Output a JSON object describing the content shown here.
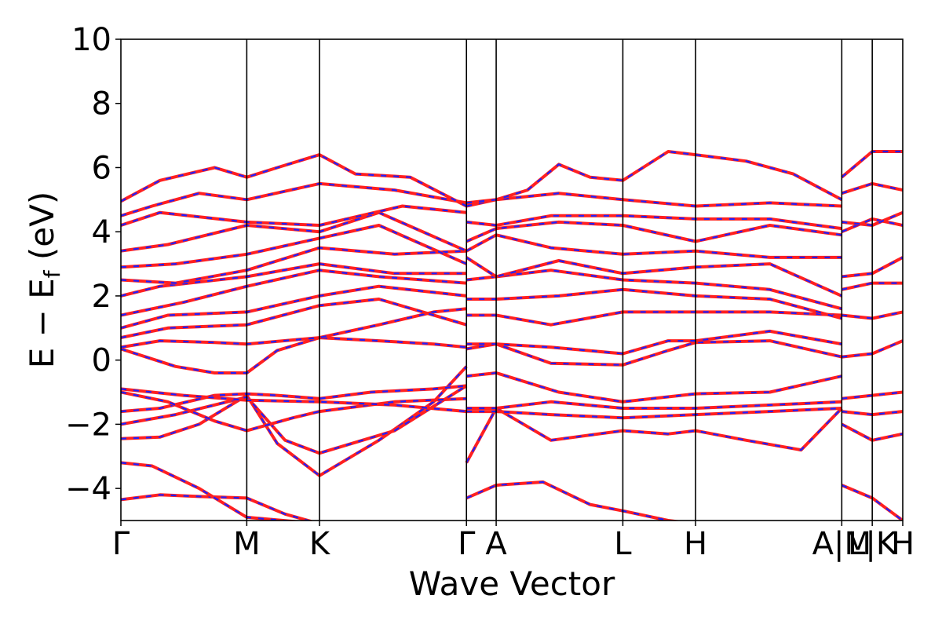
{
  "chart_data": {
    "type": "line",
    "title": "",
    "xlabel": "Wave Vector",
    "ylabel": "E − E_f (eV)",
    "ylabel_parts": {
      "prefix": "E − E",
      "subscript": "f",
      "suffix": " (eV)"
    },
    "ylim": [
      -5,
      10
    ],
    "yticks": [
      -4,
      -2,
      0,
      2,
      4,
      6,
      8,
      10
    ],
    "ytick_labels": [
      "−4",
      "−2",
      "0",
      "2",
      "4",
      "6",
      "8",
      "10"
    ],
    "grid": false,
    "legend": "none",
    "kpath_labels": [
      "Γ",
      "M",
      "K",
      "Γ",
      "A",
      "L",
      "H",
      "A",
      "M",
      "L",
      "K",
      "H"
    ],
    "kpath_positions": [
      0,
      0.161,
      0.254,
      0.442,
      0.48,
      0.642,
      0.735,
      0.922,
      0.961,
      1.0
    ],
    "kpath_tick_labels": [
      "Γ",
      "M",
      "K",
      "Γ",
      "A",
      "L",
      "H",
      "A|M",
      "L|K",
      "H"
    ],
    "series_styles": [
      {
        "color": "#ff2020",
        "style": "solid"
      },
      {
        "color": "#2020ff",
        "style": "dashed"
      }
    ],
    "bands": [
      [
        [
          0,
          -4.35
        ],
        [
          0.05,
          -4.2
        ],
        [
          0.1,
          -4.25
        ],
        [
          0.161,
          -4.3
        ],
        [
          0.21,
          -4.8
        ],
        [
          0.254,
          -5.1
        ]
      ],
      [
        [
          0,
          -3.2
        ],
        [
          0.04,
          -3.3
        ],
        [
          0.1,
          -4.0
        ],
        [
          0.161,
          -4.9
        ],
        [
          0.254,
          -5.1
        ]
      ],
      [
        [
          0,
          -2.45
        ],
        [
          0.05,
          -2.4
        ],
        [
          0.1,
          -2.0
        ],
        [
          0.161,
          -1.1
        ],
        [
          0.2,
          -2.6
        ],
        [
          0.254,
          -3.6
        ],
        [
          0.33,
          -2.5
        ],
        [
          0.4,
          -1.3
        ],
        [
          0.442,
          -0.2
        ]
      ],
      [
        [
          0,
          -2.0
        ],
        [
          0.07,
          -1.7
        ],
        [
          0.161,
          -1.15
        ],
        [
          0.21,
          -2.5
        ],
        [
          0.254,
          -2.9
        ],
        [
          0.35,
          -2.2
        ],
        [
          0.442,
          -0.8
        ]
      ],
      [
        [
          0,
          -1.6
        ],
        [
          0.05,
          -1.5
        ],
        [
          0.12,
          -1.1
        ],
        [
          0.161,
          -1.05
        ],
        [
          0.2,
          -1.1
        ],
        [
          0.254,
          -1.2
        ],
        [
          0.32,
          -1.0
        ],
        [
          0.4,
          -0.9
        ],
        [
          0.442,
          -0.8
        ]
      ],
      [
        [
          0,
          -1.0
        ],
        [
          0.06,
          -1.3
        ],
        [
          0.12,
          -1.9
        ],
        [
          0.161,
          -2.2
        ],
        [
          0.22,
          -1.8
        ],
        [
          0.254,
          -1.6
        ],
        [
          0.35,
          -1.3
        ],
        [
          0.442,
          -1.2
        ]
      ],
      [
        [
          0,
          -0.9
        ],
        [
          0.08,
          -1.1
        ],
        [
          0.161,
          -1.25
        ],
        [
          0.254,
          -1.3
        ],
        [
          0.35,
          -1.4
        ],
        [
          0.442,
          -1.6
        ]
      ],
      [
        [
          0,
          0.35
        ],
        [
          0.07,
          -0.2
        ],
        [
          0.12,
          -0.4
        ],
        [
          0.161,
          -0.4
        ],
        [
          0.2,
          0.3
        ],
        [
          0.254,
          0.7
        ],
        [
          0.33,
          0.6
        ],
        [
          0.4,
          0.5
        ],
        [
          0.442,
          0.4
        ]
      ],
      [
        [
          0,
          0.4
        ],
        [
          0.05,
          0.6
        ],
        [
          0.12,
          0.55
        ],
        [
          0.161,
          0.5
        ],
        [
          0.254,
          0.7
        ],
        [
          0.33,
          1.1
        ],
        [
          0.4,
          1.5
        ],
        [
          0.442,
          1.6
        ]
      ],
      [
        [
          0,
          0.7
        ],
        [
          0.06,
          1.0
        ],
        [
          0.161,
          1.1
        ],
        [
          0.254,
          1.7
        ],
        [
          0.33,
          1.9
        ],
        [
          0.442,
          1.1
        ]
      ],
      [
        [
          0,
          1.0
        ],
        [
          0.06,
          1.4
        ],
        [
          0.161,
          1.5
        ],
        [
          0.254,
          2.0
        ],
        [
          0.33,
          2.3
        ],
        [
          0.442,
          2.0
        ]
      ],
      [
        [
          0,
          1.4
        ],
        [
          0.08,
          1.8
        ],
        [
          0.161,
          2.3
        ],
        [
          0.254,
          2.8
        ],
        [
          0.33,
          2.6
        ],
        [
          0.442,
          2.4
        ]
      ],
      [
        [
          0,
          2.0
        ],
        [
          0.05,
          2.3
        ],
        [
          0.161,
          2.6
        ],
        [
          0.254,
          3.0
        ],
        [
          0.35,
          2.7
        ],
        [
          0.442,
          2.7
        ]
      ],
      [
        [
          0,
          2.5
        ],
        [
          0.07,
          2.4
        ],
        [
          0.161,
          2.8
        ],
        [
          0.254,
          3.5
        ],
        [
          0.35,
          3.3
        ],
        [
          0.442,
          3.4
        ]
      ],
      [
        [
          0,
          2.9
        ],
        [
          0.07,
          3.0
        ],
        [
          0.161,
          3.3
        ],
        [
          0.254,
          3.8
        ],
        [
          0.33,
          4.2
        ],
        [
          0.442,
          3.0
        ]
      ],
      [
        [
          0,
          3.4
        ],
        [
          0.06,
          3.6
        ],
        [
          0.161,
          4.2
        ],
        [
          0.254,
          4.0
        ],
        [
          0.33,
          4.6
        ],
        [
          0.442,
          3.4
        ]
      ],
      [
        [
          0,
          4.2
        ],
        [
          0.05,
          4.6
        ],
        [
          0.161,
          4.3
        ],
        [
          0.254,
          4.2
        ],
        [
          0.36,
          4.8
        ],
        [
          0.442,
          4.6
        ]
      ],
      [
        [
          0,
          4.5
        ],
        [
          0.04,
          4.8
        ],
        [
          0.1,
          5.2
        ],
        [
          0.161,
          5.0
        ],
        [
          0.254,
          5.5
        ],
        [
          0.35,
          5.3
        ],
        [
          0.442,
          4.9
        ]
      ],
      [
        [
          0,
          4.95
        ],
        [
          0.05,
          5.6
        ],
        [
          0.12,
          6.0
        ],
        [
          0.161,
          5.7
        ],
        [
          0.2,
          6.0
        ],
        [
          0.254,
          6.4
        ],
        [
          0.3,
          5.8
        ],
        [
          0.37,
          5.7
        ],
        [
          0.442,
          4.8
        ]
      ],
      [
        [
          0.442,
          -4.3
        ],
        [
          0.48,
          -3.9
        ],
        [
          0.54,
          -3.8
        ],
        [
          0.6,
          -4.5
        ],
        [
          0.642,
          -4.7
        ],
        [
          0.7,
          -5.0
        ],
        [
          0.735,
          -5.1
        ]
      ],
      [
        [
          0.442,
          -3.2
        ],
        [
          0.48,
          -1.5
        ],
        [
          0.55,
          -2.5
        ],
        [
          0.642,
          -2.2
        ],
        [
          0.7,
          -2.3
        ],
        [
          0.735,
          -2.2
        ],
        [
          0.8,
          -2.5
        ],
        [
          0.87,
          -2.8
        ],
        [
          0.922,
          -1.5
        ]
      ],
      [
        [
          0.442,
          -1.6
        ],
        [
          0.48,
          -1.6
        ],
        [
          0.55,
          -1.7
        ],
        [
          0.642,
          -1.8
        ],
        [
          0.735,
          -1.7
        ],
        [
          0.83,
          -1.6
        ],
        [
          0.922,
          -1.5
        ]
      ],
      [
        [
          0.442,
          -1.5
        ],
        [
          0.48,
          -1.5
        ],
        [
          0.55,
          -1.3
        ],
        [
          0.642,
          -1.5
        ],
        [
          0.735,
          -1.5
        ],
        [
          0.83,
          -1.4
        ],
        [
          0.922,
          -1.3
        ]
      ],
      [
        [
          0.442,
          -0.5
        ],
        [
          0.48,
          -0.4
        ],
        [
          0.56,
          -1.0
        ],
        [
          0.642,
          -1.3
        ],
        [
          0.735,
          -1.05
        ],
        [
          0.83,
          -1.0
        ],
        [
          0.922,
          -0.5
        ]
      ],
      [
        [
          0.442,
          0.35
        ],
        [
          0.48,
          0.5
        ],
        [
          0.55,
          -0.1
        ],
        [
          0.642,
          -0.15
        ],
        [
          0.7,
          0.3
        ],
        [
          0.735,
          0.55
        ],
        [
          0.83,
          0.6
        ],
        [
          0.922,
          0.1
        ]
      ],
      [
        [
          0.442,
          0.5
        ],
        [
          0.48,
          0.5
        ],
        [
          0.55,
          0.4
        ],
        [
          0.642,
          0.2
        ],
        [
          0.7,
          0.6
        ],
        [
          0.735,
          0.6
        ],
        [
          0.83,
          0.9
        ],
        [
          0.922,
          0.5
        ]
      ],
      [
        [
          0.442,
          1.4
        ],
        [
          0.48,
          1.4
        ],
        [
          0.55,
          1.1
        ],
        [
          0.642,
          1.5
        ],
        [
          0.735,
          1.5
        ],
        [
          0.83,
          1.5
        ],
        [
          0.922,
          1.4
        ]
      ],
      [
        [
          0.442,
          1.9
        ],
        [
          0.48,
          1.9
        ],
        [
          0.56,
          2.0
        ],
        [
          0.642,
          2.2
        ],
        [
          0.735,
          2.0
        ],
        [
          0.83,
          1.9
        ],
        [
          0.922,
          1.3
        ]
      ],
      [
        [
          0.442,
          2.5
        ],
        [
          0.48,
          2.6
        ],
        [
          0.55,
          2.8
        ],
        [
          0.642,
          2.5
        ],
        [
          0.735,
          2.4
        ],
        [
          0.83,
          2.2
        ],
        [
          0.922,
          1.6
        ]
      ],
      [
        [
          0.442,
          3.2
        ],
        [
          0.48,
          2.6
        ],
        [
          0.56,
          3.1
        ],
        [
          0.642,
          2.7
        ],
        [
          0.735,
          2.9
        ],
        [
          0.83,
          3.0
        ],
        [
          0.922,
          2.0
        ]
      ],
      [
        [
          0.442,
          3.4
        ],
        [
          0.48,
          3.9
        ],
        [
          0.55,
          3.5
        ],
        [
          0.642,
          3.3
        ],
        [
          0.735,
          3.4
        ],
        [
          0.83,
          3.2
        ],
        [
          0.922,
          3.2
        ]
      ],
      [
        [
          0.442,
          3.7
        ],
        [
          0.48,
          4.1
        ],
        [
          0.56,
          4.3
        ],
        [
          0.642,
          4.2
        ],
        [
          0.735,
          3.7
        ],
        [
          0.83,
          4.2
        ],
        [
          0.922,
          3.9
        ]
      ],
      [
        [
          0.442,
          4.3
        ],
        [
          0.48,
          4.2
        ],
        [
          0.55,
          4.5
        ],
        [
          0.642,
          4.5
        ],
        [
          0.735,
          4.4
        ],
        [
          0.83,
          4.4
        ],
        [
          0.922,
          4.1
        ]
      ],
      [
        [
          0.442,
          4.8
        ],
        [
          0.48,
          5.0
        ],
        [
          0.56,
          5.2
        ],
        [
          0.642,
          5.0
        ],
        [
          0.735,
          4.8
        ],
        [
          0.83,
          4.9
        ],
        [
          0.922,
          4.8
        ]
      ],
      [
        [
          0.442,
          4.9
        ],
        [
          0.48,
          5.0
        ],
        [
          0.52,
          5.3
        ],
        [
          0.56,
          6.1
        ],
        [
          0.6,
          5.7
        ],
        [
          0.642,
          5.6
        ],
        [
          0.7,
          6.5
        ],
        [
          0.735,
          6.4
        ],
        [
          0.8,
          6.2
        ],
        [
          0.86,
          5.8
        ],
        [
          0.922,
          5.0
        ]
      ],
      [
        [
          0.922,
          -3.9
        ],
        [
          0.961,
          -4.3
        ],
        [
          1.0,
          -5.0
        ]
      ],
      [
        [
          0.922,
          -2.0
        ],
        [
          0.961,
          -2.5
        ],
        [
          1.0,
          -2.3
        ]
      ],
      [
        [
          0.922,
          -1.6
        ],
        [
          0.961,
          -1.7
        ],
        [
          1.0,
          -1.6
        ]
      ],
      [
        [
          0.922,
          -1.2
        ],
        [
          0.961,
          -1.1
        ],
        [
          1.0,
          -1.0
        ]
      ],
      [
        [
          0.922,
          0.1
        ],
        [
          0.961,
          0.2
        ],
        [
          1.0,
          0.6
        ]
      ],
      [
        [
          0.922,
          1.4
        ],
        [
          0.961,
          1.3
        ],
        [
          1.0,
          1.5
        ]
      ],
      [
        [
          0.922,
          2.2
        ],
        [
          0.961,
          2.4
        ],
        [
          1.0,
          2.4
        ]
      ],
      [
        [
          0.922,
          2.6
        ],
        [
          0.961,
          2.7
        ],
        [
          1.0,
          3.2
        ]
      ],
      [
        [
          0.922,
          4.0
        ],
        [
          0.961,
          4.4
        ],
        [
          1.0,
          4.2
        ]
      ],
      [
        [
          0.922,
          4.3
        ],
        [
          0.961,
          4.2
        ],
        [
          1.0,
          4.6
        ]
      ],
      [
        [
          0.922,
          5.2
        ],
        [
          0.961,
          5.5
        ],
        [
          1.0,
          5.3
        ]
      ],
      [
        [
          0.922,
          5.7
        ],
        [
          0.961,
          6.5
        ],
        [
          1.0,
          6.5
        ]
      ]
    ]
  }
}
